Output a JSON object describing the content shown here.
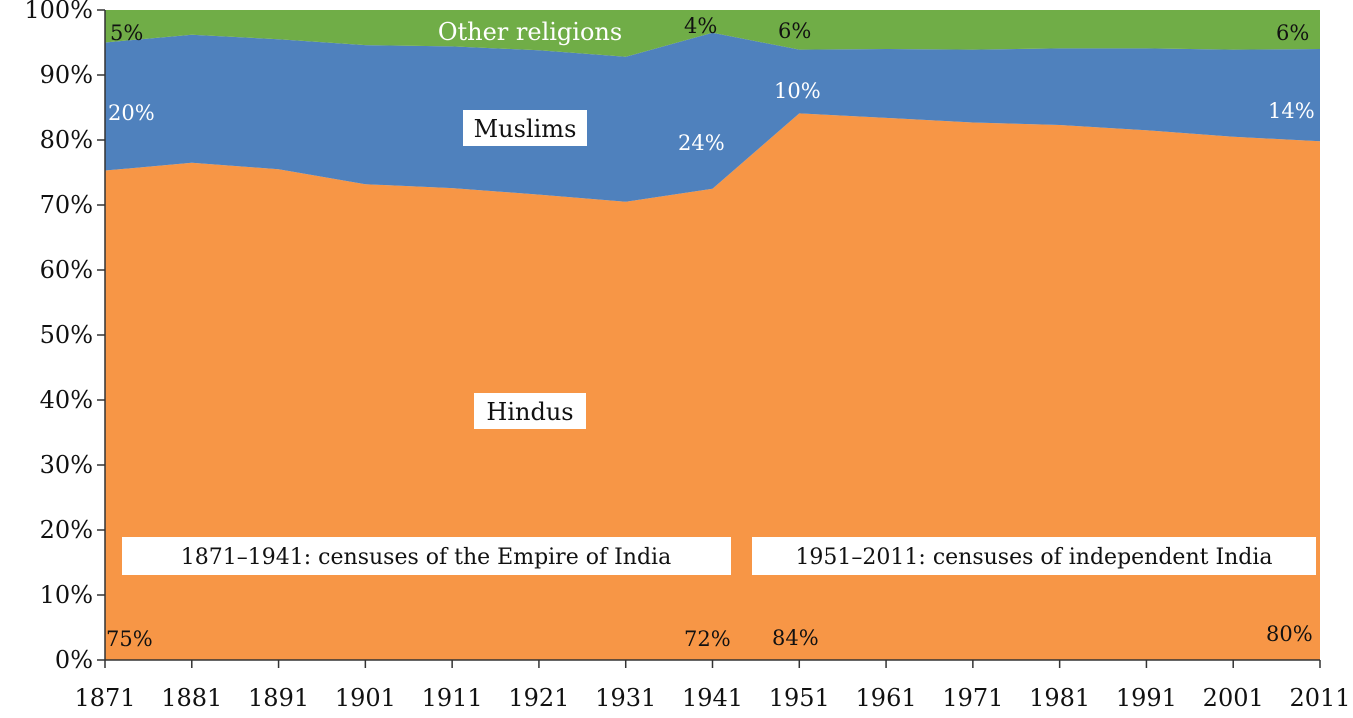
{
  "chart_data": {
    "type": "area",
    "stacked": true,
    "x": [
      "1871",
      "1881",
      "1891",
      "1901",
      "1911",
      "1921",
      "1931",
      "1941",
      "1951",
      "1961",
      "1971",
      "1981",
      "1991",
      "2001",
      "2011"
    ],
    "series": [
      {
        "name": "Hindus",
        "color": "#F79646",
        "values": [
          75.3,
          76.5,
          75.5,
          73.2,
          72.6,
          71.6,
          70.5,
          72.5,
          84.1,
          83.4,
          82.7,
          82.3,
          81.5,
          80.5,
          79.8
        ]
      },
      {
        "name": "Muslims",
        "color": "#4F81BD",
        "values": [
          19.7,
          19.7,
          20.0,
          21.4,
          21.8,
          22.2,
          22.3,
          24.0,
          9.8,
          10.6,
          11.2,
          11.8,
          12.6,
          13.4,
          14.2
        ]
      },
      {
        "name": "Other religions",
        "color": "#70AD47",
        "values": [
          5.0,
          3.8,
          4.5,
          5.4,
          5.6,
          6.2,
          7.2,
          3.5,
          6.1,
          6.0,
          6.1,
          5.9,
          5.9,
          6.1,
          6.0
        ]
      }
    ],
    "ylim": [
      0,
      100
    ],
    "yticks": [
      "0%",
      "10%",
      "20%",
      "30%",
      "40%",
      "50%",
      "60%",
      "70%",
      "80%",
      "90%",
      "100%"
    ],
    "grid": false,
    "legend": "none",
    "area_labels": [
      "Other religions",
      "Muslims",
      "Hindus"
    ],
    "annotations": [
      "1871–1941: censuses of the Empire of India",
      "1951–2011: censuses of independent India"
    ],
    "value_labels": [
      "5%",
      "20%",
      "75%",
      "4%",
      "24%",
      "72%",
      "6%",
      "10%",
      "84%",
      "6%",
      "14%",
      "80%"
    ]
  }
}
